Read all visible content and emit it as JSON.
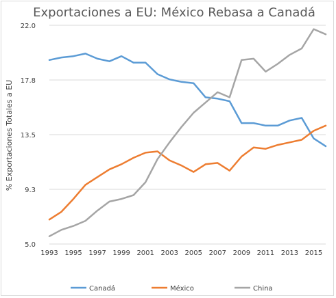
{
  "chart_data": {
    "type": "line",
    "title": "Exportaciones a EU: México Rebasa a Canadá",
    "ylabel": "% Exportaciones Totales a EU",
    "xlabel": "",
    "ylim": [
      5.0,
      22.0
    ],
    "yticks": [
      "5.0",
      "9.3",
      "13.5",
      "17.8",
      "22.0"
    ],
    "ytick_values": [
      5.0,
      9.25,
      13.5,
      17.75,
      22.0
    ],
    "xticks": [
      "1993",
      "1995",
      "1997",
      "1999",
      "2001",
      "2003",
      "2005",
      "2007",
      "2009",
      "2011",
      "2013",
      "2015"
    ],
    "x": [
      1993,
      1994,
      1995,
      1996,
      1997,
      1998,
      1999,
      2000,
      2001,
      2002,
      2003,
      2004,
      2005,
      2006,
      2007,
      2008,
      2009,
      2010,
      2011,
      2012,
      2013,
      2014,
      2015,
      2016
    ],
    "grid": true,
    "legend_position": "bottom",
    "series": [
      {
        "name": "Canadá",
        "color": "#5b9bd5",
        "values": [
          19.3,
          19.5,
          19.6,
          19.8,
          19.4,
          19.2,
          19.6,
          19.1,
          19.1,
          18.2,
          17.8,
          17.6,
          17.5,
          16.4,
          16.3,
          16.1,
          14.4,
          14.4,
          14.2,
          14.2,
          14.6,
          14.8,
          13.2,
          12.6
        ]
      },
      {
        "name": "México",
        "color": "#ed7d31",
        "values": [
          6.9,
          7.5,
          8.5,
          9.6,
          10.2,
          10.8,
          11.2,
          11.7,
          12.1,
          12.2,
          11.5,
          11.1,
          10.6,
          11.2,
          11.3,
          10.7,
          11.8,
          12.5,
          12.4,
          12.7,
          12.9,
          13.1,
          13.8,
          14.2
        ]
      },
      {
        "name": "China",
        "color": "#a5a5a5",
        "values": [
          5.6,
          6.1,
          6.4,
          6.8,
          7.6,
          8.3,
          8.5,
          8.8,
          9.8,
          11.6,
          12.9,
          14.1,
          15.2,
          16.0,
          16.8,
          16.4,
          19.3,
          19.4,
          18.4,
          19.0,
          19.7,
          20.2,
          21.7,
          21.3
        ]
      }
    ]
  }
}
